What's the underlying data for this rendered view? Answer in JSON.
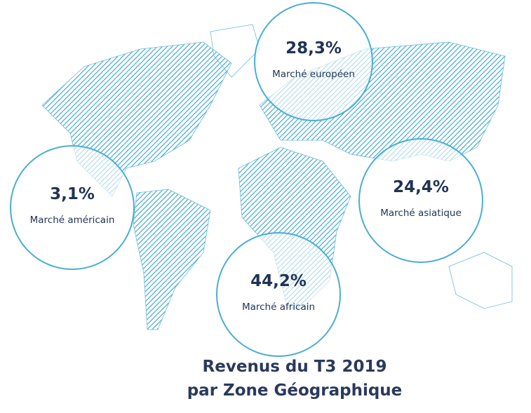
{
  "regions": [
    {
      "value": "28,3%",
      "label": "Marché européen"
    },
    {
      "value": "3,1%",
      "label": "Marché américain"
    },
    {
      "value": "24,4%",
      "label": "Marché asiatique"
    },
    {
      "value": "44,2%",
      "label": "Marché africain"
    }
  ],
  "title": {
    "line1": "Revenus du T3 2019",
    "line2": "par Zone Géographique"
  }
}
